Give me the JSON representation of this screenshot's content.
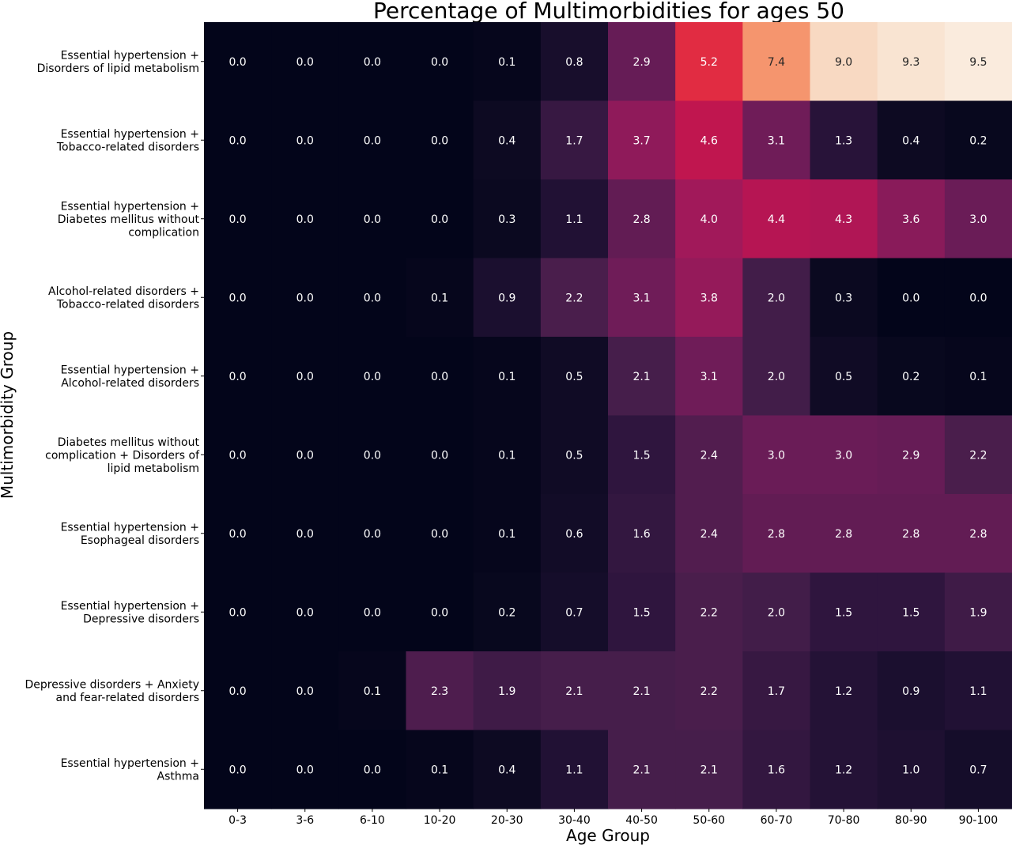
{
  "chart_data": {
    "type": "heatmap",
    "title": "Percentage of Multimorbidities for ages 50",
    "xlabel": "Age Group",
    "ylabel": "Multimorbidity  Group",
    "x_categories": [
      "0-3",
      "3-6",
      "6-10",
      "10-20",
      "20-30",
      "30-40",
      "40-50",
      "50-60",
      "60-70",
      "70-80",
      "80-90",
      "90-100"
    ],
    "y_categories": [
      [
        "Essential hypertension +",
        "Disorders of lipid metabolism"
      ],
      [
        "Essential hypertension +",
        "Tobacco-related disorders"
      ],
      [
        "Essential hypertension +",
        "Diabetes mellitus without",
        "complication"
      ],
      [
        "Alcohol-related disorders +",
        "Tobacco-related disorders"
      ],
      [
        "Essential hypertension +",
        "Alcohol-related disorders"
      ],
      [
        "Diabetes mellitus without",
        "complication + Disorders of",
        "lipid metabolism"
      ],
      [
        "Essential hypertension +",
        "Esophageal disorders"
      ],
      [
        "Essential hypertension +",
        "Depressive disorders"
      ],
      [
        "Depressive disorders + Anxiety",
        "and fear-related disorders"
      ],
      [
        "Essential hypertension +",
        "Asthma"
      ]
    ],
    "values": [
      [
        0.0,
        0.0,
        0.0,
        0.0,
        0.1,
        0.8,
        2.9,
        5.2,
        7.4,
        9.0,
        9.3,
        9.5
      ],
      [
        0.0,
        0.0,
        0.0,
        0.0,
        0.4,
        1.7,
        3.7,
        4.6,
        3.1,
        1.3,
        0.4,
        0.2
      ],
      [
        0.0,
        0.0,
        0.0,
        0.0,
        0.3,
        1.1,
        2.8,
        4.0,
        4.4,
        4.3,
        3.6,
        3.0
      ],
      [
        0.0,
        0.0,
        0.0,
        0.1,
        0.9,
        2.2,
        3.1,
        3.8,
        2.0,
        0.3,
        0.0,
        0.0
      ],
      [
        0.0,
        0.0,
        0.0,
        0.0,
        0.1,
        0.5,
        2.1,
        3.1,
        2.0,
        0.5,
        0.2,
        0.1
      ],
      [
        0.0,
        0.0,
        0.0,
        0.0,
        0.1,
        0.5,
        1.5,
        2.4,
        3.0,
        3.0,
        2.9,
        2.2
      ],
      [
        0.0,
        0.0,
        0.0,
        0.0,
        0.1,
        0.6,
        1.6,
        2.4,
        2.8,
        2.8,
        2.8,
        2.8
      ],
      [
        0.0,
        0.0,
        0.0,
        0.0,
        0.2,
        0.7,
        1.5,
        2.2,
        2.0,
        1.5,
        1.5,
        1.9
      ],
      [
        0.0,
        0.0,
        0.1,
        2.3,
        1.9,
        2.1,
        2.1,
        2.2,
        1.7,
        1.2,
        0.9,
        1.1
      ],
      [
        0.0,
        0.0,
        0.0,
        0.1,
        0.4,
        1.1,
        2.1,
        2.1,
        1.6,
        1.2,
        1.0,
        0.7
      ]
    ],
    "value_range": [
      0.0,
      9.5
    ],
    "colormap": "rocket",
    "colorbar": false,
    "grid": false
  }
}
